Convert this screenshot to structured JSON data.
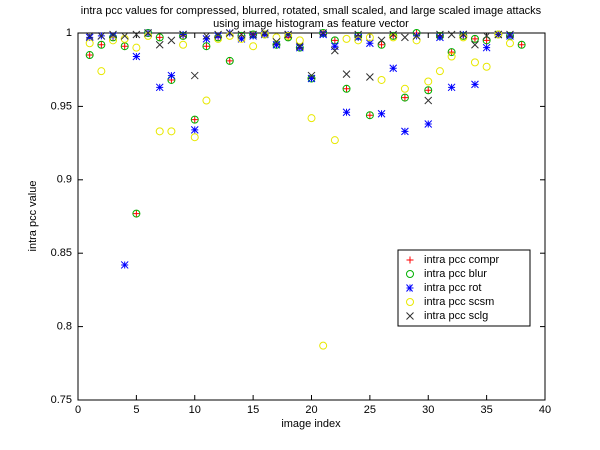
{
  "chart_data": {
    "type": "scatter",
    "title": [
      "intra pcc values for compressed, blurred, rotated, small scaled, and large scaled image attacks",
      "using image histogram as feature vector"
    ],
    "x_label": "image index",
    "y_label": "intra pcc value",
    "x": [
      1,
      2,
      3,
      4,
      5,
      6,
      7,
      8,
      9,
      10,
      11,
      12,
      13,
      14,
      15,
      16,
      17,
      18,
      19,
      20,
      21,
      22,
      23,
      24,
      25,
      26,
      27,
      28,
      29,
      30,
      31,
      32,
      33,
      34,
      35,
      36,
      37,
      38
    ],
    "xlim": [
      0,
      40
    ],
    "xticks": [
      0,
      5,
      10,
      15,
      20,
      25,
      30,
      35,
      40
    ],
    "ylim": [
      0.75,
      1
    ],
    "yticks": [
      0.75,
      0.8,
      0.85,
      0.9,
      0.95,
      1
    ],
    "legend": "right",
    "series": [
      {
        "name": "intra pcc compr",
        "color": "#ff0000",
        "marker": "plus",
        "values": [
          0.985,
          0.992,
          0.997,
          0.991,
          0.877,
          1,
          0.997,
          0.968,
          0.998,
          0.941,
          0.991,
          0.997,
          0.981,
          0.998,
          0.999,
          0.999,
          0.992,
          0.997,
          0.99,
          0.969,
          1,
          0.995,
          0.962,
          0.998,
          0.944,
          0.992,
          0.998,
          0.956,
          1,
          0.961,
          0.998,
          0.987,
          0.998,
          0.996,
          0.995,
          0.999,
          0.998,
          0.992
        ]
      },
      {
        "name": "intra pcc blur",
        "color": "#00b000",
        "marker": "circle",
        "values": [
          0.985,
          0.992,
          0.997,
          0.991,
          0.877,
          1,
          0.997,
          0.968,
          0.998,
          0.941,
          0.991,
          0.997,
          0.981,
          0.998,
          0.999,
          0.999,
          0.992,
          0.997,
          0.99,
          0.969,
          1,
          0.995,
          0.962,
          0.998,
          0.944,
          0.992,
          0.998,
          0.956,
          1,
          0.961,
          0.998,
          0.987,
          0.998,
          0.996,
          0.995,
          0.999,
          0.998,
          0.992
        ]
      },
      {
        "name": "intra pcc rot",
        "color": "#0000ff",
        "marker": "star",
        "values": [
          0.997,
          0.998,
          0.998,
          0.842,
          0.984,
          1,
          0.963,
          0.971,
          0.999,
          0.934,
          0.996,
          0.998,
          1,
          0.996,
          0.998,
          0.999,
          0.992,
          0.999,
          0.99,
          0.969,
          0.999,
          0.991,
          0.946,
          0.997,
          0.993,
          0.945,
          0.976,
          0.933,
          0.998,
          0.938,
          0.997,
          0.963,
          0.999,
          0.965,
          0.99,
          0.999,
          0.998,
          null
        ]
      },
      {
        "name": "intra pcc scsm",
        "color": "#e8e800",
        "marker": "circle",
        "values": [
          0.993,
          0.974,
          0.995,
          0.996,
          0.99,
          0.998,
          0.933,
          0.933,
          0.992,
          0.929,
          0.954,
          0.996,
          0.998,
          0.996,
          0.991,
          0.999,
          0.997,
          0.998,
          0.995,
          0.942,
          0.787,
          0.927,
          0.996,
          0.995,
          0.997,
          0.968,
          0.997,
          0.962,
          0.995,
          0.967,
          0.974,
          0.984,
          0.997,
          0.98,
          0.977,
          0.999,
          0.993,
          null
        ]
      },
      {
        "name": "intra pcc sclg",
        "color": "#303030",
        "marker": "cross",
        "values": [
          0.998,
          0.998,
          0.999,
          0.998,
          0.999,
          1,
          0.992,
          0.995,
          0.999,
          0.971,
          0.998,
          0.999,
          1,
          0.999,
          0.999,
          1,
          0.994,
          0.999,
          0.991,
          0.971,
          1,
          0.988,
          0.972,
          0.999,
          0.97,
          0.995,
          0.999,
          0.997,
          0.998,
          0.954,
          0.999,
          0.999,
          0.999,
          0.992,
          0.998,
          0.999,
          0.999,
          null
        ]
      }
    ]
  }
}
